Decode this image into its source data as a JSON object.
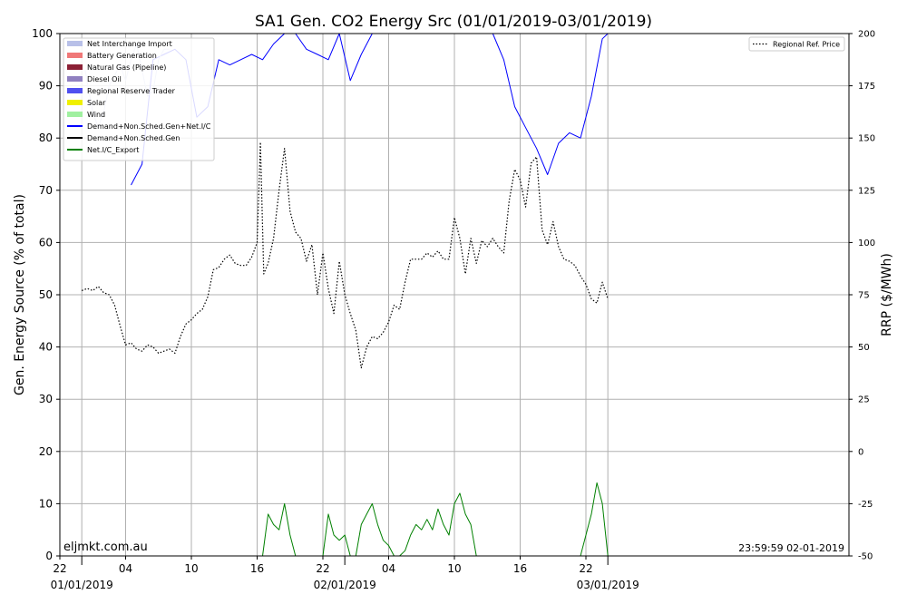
{
  "chart_data": {
    "type": "line",
    "title": "SA1 Gen. CO2 Energy Src (01/01/2019-03/01/2019)",
    "ylabel": "Gen. Energy Source (% of total)",
    "y2label": "RRP ($/MWh)",
    "ylim": [
      0,
      100
    ],
    "y2lim": [
      -50,
      200
    ],
    "xlim": [
      -2,
      70
    ],
    "yticks": [
      0,
      10,
      20,
      30,
      40,
      50,
      60,
      70,
      80,
      90,
      100
    ],
    "y2ticks": [
      -50,
      -25,
      0,
      25,
      50,
      75,
      100,
      125,
      150,
      175,
      200
    ],
    "xticks": [
      {
        "hour": -2,
        "label": "22"
      },
      {
        "hour": 4,
        "label": "04"
      },
      {
        "hour": 10,
        "label": "10"
      },
      {
        "hour": 16,
        "label": "16"
      },
      {
        "hour": 22,
        "label": "22"
      },
      {
        "hour": 28,
        "label": "04"
      },
      {
        "hour": 34,
        "label": "10"
      },
      {
        "hour": 40,
        "label": "16"
      },
      {
        "hour": 46,
        "label": "22"
      }
    ],
    "date_labels": [
      {
        "hour": 0,
        "label": "01/01/2019"
      },
      {
        "hour": 24,
        "label": "02/01/2019"
      },
      {
        "hour": 48,
        "label": "03/01/2019"
      }
    ],
    "grid": true,
    "legend_position": "upper-left",
    "legend": [
      {
        "label": "Net Interchange Import",
        "color": "#b8c0e8",
        "kind": "patch"
      },
      {
        "label": "Battery Generation",
        "color": "#f07878",
        "kind": "patch"
      },
      {
        "label": "Natural Gas (Pipeline)",
        "color": "#8b2035",
        "kind": "patch"
      },
      {
        "label": "Diesel Oil",
        "color": "#9080c0",
        "kind": "patch"
      },
      {
        "label": "Regional Reserve Trader",
        "color": "#5050f0",
        "kind": "patch"
      },
      {
        "label": "Solar",
        "color": "#f0f000",
        "kind": "patch"
      },
      {
        "label": "Wind",
        "color": "#a0f0a0",
        "kind": "patch"
      },
      {
        "label": "Demand+Non.Sched.Gen+Net.I/C",
        "color": "#0000ff",
        "kind": "line"
      },
      {
        "label": "Demand+Non.Sched.Gen",
        "color": "#000000",
        "kind": "line"
      },
      {
        "label": "Net.I/C_Export",
        "color": "#008000",
        "kind": "line"
      }
    ],
    "legend2": {
      "label": "Regional Ref. Price",
      "color": "#000000",
      "kind": "dotted",
      "position": "upper-right"
    },
    "series": [
      {
        "name": "Demand+Non.Sched.Gen+Net.I/C",
        "axis": "left",
        "color": "#0000ff",
        "x": [
          0.5,
          3.5,
          4.5,
          5.5,
          6.5,
          7.5,
          8.5,
          9.5,
          10.5,
          11.5,
          12.5,
          13.5,
          14.5,
          15.5,
          16.5,
          17.5,
          18.5,
          19.5,
          20.5,
          21.5,
          22.5,
          23.5,
          24.5,
          25.5,
          26.5,
          27.5,
          28.5,
          29.5,
          30.5,
          31.5,
          32.5,
          33.5,
          34.5,
          35.5,
          36.5,
          37.5,
          38.5,
          39.5,
          40.5,
          41.5,
          42.5,
          43.5,
          44.5,
          45.5,
          46.5,
          47.5,
          48.0
        ],
        "y": [
          null,
          null,
          71,
          75,
          95,
          96,
          97,
          95,
          84,
          86,
          95,
          94,
          95,
          96,
          95,
          98,
          100,
          100,
          97,
          96,
          95,
          100,
          91,
          96,
          100,
          100,
          100,
          100,
          100,
          100,
          100,
          100,
          100,
          100,
          100,
          100,
          95,
          86,
          82,
          78,
          73,
          79,
          81,
          80,
          88,
          99,
          100
        ]
      },
      {
        "name": "Demand+Non.Sched.Gen+Net.I/C (faded)",
        "axis": "left",
        "color": "#b8c0e8",
        "x": [
          0.3,
          1.0,
          1.5,
          2.0,
          2.5,
          3.0,
          3.5,
          4.0,
          4.5,
          5.0,
          5.5,
          6.0,
          6.5,
          7.0,
          7.5,
          8.0
        ],
        "y": [
          93,
          85,
          82,
          85,
          90,
          92,
          94,
          91,
          95,
          98,
          93,
          88,
          89,
          95,
          97,
          97
        ]
      },
      {
        "name": "Regional Ref. Price",
        "axis": "right",
        "color": "#000000",
        "dashed": true,
        "x": [
          0.0,
          0.5,
          1.0,
          1.5,
          2.0,
          2.5,
          3.0,
          3.5,
          4.0,
          4.5,
          5.0,
          5.5,
          6.0,
          6.5,
          7.0,
          7.5,
          8.0,
          8.5,
          9.0,
          9.5,
          10.0,
          10.5,
          11.0,
          11.5,
          12.0,
          12.5,
          13.0,
          13.5,
          14.0,
          14.5,
          15.0,
          15.5,
          16.0,
          16.3,
          16.6,
          17.0,
          17.5,
          18.0,
          18.5,
          19.0,
          19.5,
          20.0,
          20.5,
          21.0,
          21.5,
          22.0,
          22.5,
          23.0,
          23.5,
          24.0,
          24.5,
          25.0,
          25.5,
          26.0,
          26.5,
          27.0,
          27.5,
          28.0,
          28.5,
          29.0,
          29.5,
          30.0,
          30.5,
          31.0,
          31.5,
          32.0,
          32.5,
          33.0,
          33.5,
          34.0,
          34.5,
          35.0,
          35.5,
          36.0,
          36.5,
          37.0,
          37.5,
          38.0,
          38.5,
          39.0,
          39.5,
          40.0,
          40.5,
          41.0,
          41.5,
          42.0,
          42.5,
          43.0,
          43.5,
          44.0,
          44.5,
          45.0,
          45.5,
          46.0,
          46.5,
          47.0,
          47.5,
          48.0
        ],
        "y": [
          77,
          78,
          77,
          79,
          76,
          75,
          70,
          60,
          51,
          52,
          49,
          48,
          51,
          50,
          47,
          48,
          49,
          47,
          55,
          61,
          63,
          66,
          68,
          74,
          87,
          88,
          92,
          94,
          90,
          89,
          89,
          93,
          100,
          148,
          85,
          90,
          102,
          125,
          145,
          115,
          105,
          102,
          91,
          99,
          75,
          95,
          78,
          66,
          91,
          75,
          66,
          58,
          40,
          50,
          55,
          54,
          57,
          62,
          70,
          68,
          81,
          92,
          92,
          92,
          95,
          93,
          96,
          92,
          92,
          112,
          102,
          85,
          102,
          90,
          101,
          98,
          102,
          98,
          95,
          120,
          135,
          130,
          117,
          138,
          141,
          106,
          99,
          110,
          98,
          92,
          91,
          89,
          84,
          80,
          73,
          71,
          81,
          73
        ]
      },
      {
        "name": "Net.I/C_Export",
        "axis": "left",
        "color": "#008000",
        "x": [
          16.5,
          17.0,
          17.5,
          18.0,
          18.5,
          19.0,
          19.5,
          22.0,
          22.5,
          23.0,
          23.5,
          24.0,
          24.5,
          25.0,
          25.5,
          26.0,
          26.5,
          27.0,
          27.5,
          28.0,
          28.5,
          29.0,
          29.5,
          30.0,
          30.5,
          31.0,
          31.5,
          32.0,
          32.5,
          33.0,
          33.5,
          34.0,
          34.5,
          35.0,
          35.5,
          36.0,
          36.5,
          45.5,
          46.0,
          46.5,
          47.0,
          47.5,
          48.0
        ],
        "y": [
          0,
          8,
          6,
          5,
          10,
          4,
          0,
          0,
          8,
          4,
          3,
          4,
          0,
          0,
          6,
          8,
          10,
          6,
          3,
          2,
          0,
          0,
          1,
          4,
          6,
          5,
          7,
          5,
          9,
          6,
          4,
          10,
          12,
          8,
          6,
          0,
          0,
          0,
          4,
          8,
          14,
          10,
          0
        ]
      }
    ],
    "annotations": {
      "watermark": "eljmkt.com.au",
      "timestamp": "23:59:59 02-01-2019"
    }
  }
}
